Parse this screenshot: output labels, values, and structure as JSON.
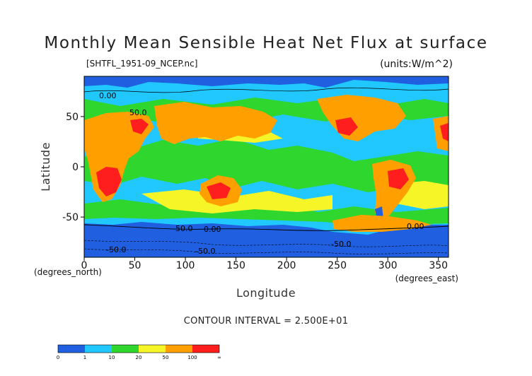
{
  "chart_data": {
    "type": "heatmap",
    "title": "Monthly Mean Sensible Heat Net Flux at surface",
    "subtitle": "[SHTFL_1951-09_NCEP.nc]",
    "units": "(units:W/m^2)",
    "xlabel": "Longitude",
    "ylabel": "Latitude",
    "x_unit_note": "(degrees_east)",
    "y_unit_note": "(degrees_north)",
    "xlim": [
      0,
      360
    ],
    "ylim": [
      -90,
      90
    ],
    "x_ticks": [
      "0",
      "50",
      "100",
      "150",
      "200",
      "250",
      "300",
      "350"
    ],
    "y_ticks": [
      "50",
      "0",
      "-50"
    ],
    "contour_interval_text": "CONTOUR INTERVAL = 2.500E+01",
    "contour_labels": [
      "0.00",
      "50.0",
      "50.0",
      "0.00",
      "0.00",
      "-50.0",
      "-50.0",
      "-50.0"
    ],
    "legend": {
      "levels": [
        "0",
        "1",
        "10",
        "20",
        "50",
        "100",
        "∞"
      ],
      "colors": [
        "#1f5fe0",
        "#20c8ff",
        "#2ed62e",
        "#f5f528",
        "#ffa000",
        "#ff1e1e"
      ]
    },
    "colors": {
      "ocean_low": "#1f5fe0",
      "ocean_mid": "#20c8ff",
      "green": "#2ed62e",
      "yellow": "#f5f528",
      "orange": "#ffa000",
      "red": "#ff1e1e"
    }
  }
}
